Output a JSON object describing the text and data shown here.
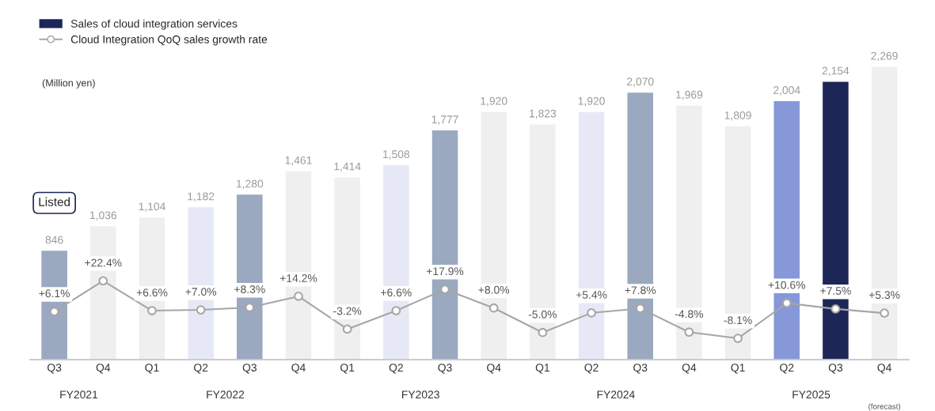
{
  "chart_data": {
    "type": "bar",
    "categories": [
      "Q3",
      "Q4",
      "Q1",
      "Q2",
      "Q3",
      "Q4",
      "Q1",
      "Q2",
      "Q3",
      "Q4",
      "Q1",
      "Q2",
      "Q3",
      "Q4",
      "Q1",
      "Q2",
      "Q3",
      "Q4"
    ],
    "series": [
      {
        "name": "Sales of cloud integration services",
        "color": "#1c2757",
        "colors": [
          "#9aa8c0",
          "#efefef",
          "#efefef",
          "#e6e9f5",
          "#9aa8c0",
          "#efefef",
          "#efefef",
          "#e6e9f5",
          "#9aa8c0",
          "#efefef",
          "#efefef",
          "#e6e9f5",
          "#9aa8c0",
          "#efefef",
          "#efefef",
          "#8798d9",
          "#1c2757",
          "#efefef"
        ],
        "values": [
          846,
          1036,
          1104,
          1182,
          1280,
          1461,
          1414,
          1508,
          1777,
          1920,
          1823,
          1920,
          2070,
          1969,
          1809,
          2004,
          2154,
          2269
        ],
        "value_labels": [
          "846",
          "1,036",
          "1,104",
          "1,182",
          "1,280",
          "1,461",
          "1,414",
          "1,508",
          "1,777",
          "1,920",
          "1,823",
          "1,920",
          "2,070",
          "1,969",
          "1,809",
          "2,004",
          "2,154",
          "2,269"
        ]
      },
      {
        "name": "Cloud Integration QoQ sales growth rate",
        "type": "line",
        "axis": "y2",
        "color": "#a6a6a6",
        "values": [
          6.1,
          22.4,
          6.6,
          7.0,
          8.3,
          14.2,
          -3.2,
          6.6,
          17.9,
          8.0,
          -5.0,
          5.4,
          7.8,
          -4.8,
          -8.1,
          10.6,
          7.5,
          5.3
        ],
        "value_labels": [
          "+6.1%",
          "+22.4%",
          "+6.6%",
          "+7.0%",
          "+8.3%",
          "+14.2%",
          "-3.2%",
          "+6.6%",
          "+17.9%",
          "+8.0%",
          "-5.0%",
          "+5.4%",
          "+7.8%",
          "-4.8%",
          "-8.1%",
          "+10.6%",
          "+7.5%",
          "+5.3%"
        ]
      }
    ],
    "annotations": [
      "(Million yen)",
      "Listed",
      "(forecast)",
      "FY2021",
      "FY2022",
      "FY2023",
      "FY2024",
      "FY2025"
    ],
    "legend": "top left",
    "marker": "circle",
    "line_style": "solid",
    "grid": false
  }
}
